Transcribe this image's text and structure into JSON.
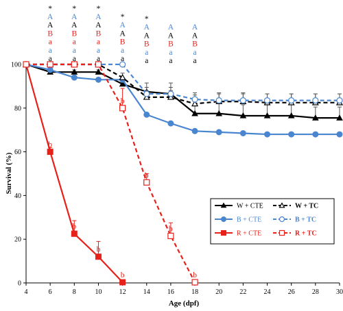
{
  "chart_data": {
    "type": "line",
    "xlabel": "Age (dpf)",
    "ylabel": "Survival (%)",
    "xlim": [
      4,
      30
    ],
    "ylim": [
      0,
      100
    ],
    "x_ticks": [
      4,
      6,
      8,
      10,
      12,
      14,
      16,
      18,
      20,
      22,
      24,
      26,
      28,
      30
    ],
    "y_ticks": [
      0,
      20,
      40,
      60,
      80,
      100
    ],
    "grid": false,
    "legend_position": "right-center",
    "series": [
      {
        "name": "W + CTE",
        "color": "#000000",
        "dashed": false,
        "marker": "filled-triangle",
        "x": [
          4,
          6,
          8,
          10,
          12,
          14,
          16,
          18,
          20,
          22,
          24,
          26,
          28,
          30
        ],
        "y": [
          100,
          96.5,
          96.5,
          96.5,
          91,
          87.5,
          86.5,
          77.5,
          77.5,
          76.5,
          76.5,
          76.5,
          75.5,
          75.5
        ],
        "err": [
          0,
          1,
          1,
          1,
          3,
          4,
          5,
          6,
          5,
          5,
          5,
          5,
          5,
          5
        ]
      },
      {
        "name": "B + CTE",
        "color": "#4a86d0",
        "dashed": false,
        "marker": "filled-circle",
        "x": [
          4,
          6,
          8,
          10,
          12,
          14,
          16,
          18,
          20,
          22,
          24,
          26,
          28,
          30
        ],
        "y": [
          100,
          97.5,
          94,
          93,
          93,
          77,
          73,
          69.5,
          69,
          68.5,
          68,
          68,
          68,
          68
        ],
        "err": [
          0,
          0,
          0,
          0,
          0,
          0,
          0,
          0,
          0,
          0,
          0,
          0,
          0,
          0
        ]
      },
      {
        "name": "R + CTE",
        "color": "#e8201a",
        "dashed": false,
        "marker": "filled-square",
        "x": [
          4,
          6,
          8,
          10,
          12
        ],
        "y": [
          100,
          60,
          22.5,
          12,
          0.3
        ],
        "err": [
          0,
          2,
          6,
          7,
          0
        ]
      },
      {
        "name": "W + TC",
        "color": "#000000",
        "dashed": true,
        "marker": "open-triangle",
        "x": [
          4,
          6,
          8,
          10,
          12,
          14,
          16,
          18,
          20,
          22,
          24,
          26,
          28,
          30
        ],
        "y": [
          100,
          100,
          100,
          100,
          94,
          85,
          85,
          82,
          83,
          83,
          82.5,
          82.5,
          82.5,
          82.5
        ],
        "err": [
          0,
          0,
          0,
          0,
          2,
          3,
          3,
          4,
          4,
          4,
          4,
          4,
          4,
          4
        ]
      },
      {
        "name": "B + TC",
        "color": "#4a86d0",
        "dashed": true,
        "marker": "open-circle",
        "x": [
          4,
          6,
          8,
          10,
          12,
          14,
          16,
          18,
          20,
          22,
          24,
          26,
          28,
          30
        ],
        "y": [
          100,
          100,
          100,
          100,
          100,
          86.5,
          86.5,
          84,
          83.5,
          83.5,
          83.5,
          83.5,
          83.5,
          83.5
        ],
        "err": [
          0,
          0,
          0,
          0,
          0,
          3,
          3,
          3,
          3,
          3,
          3,
          3,
          3,
          3
        ]
      },
      {
        "name": "R + TC",
        "color": "#e8201a",
        "dashed": true,
        "marker": "open-square",
        "x": [
          4,
          6,
          8,
          10,
          12,
          14,
          16,
          18
        ],
        "y": [
          100,
          100,
          100,
          100,
          80,
          46,
          21.5,
          0.3
        ],
        "err": [
          0,
          0,
          0,
          0,
          9,
          4,
          6,
          0
        ]
      }
    ],
    "point_labels": [
      {
        "x": 6,
        "y": 60,
        "text": "b",
        "color": "#e8201a"
      },
      {
        "x": 8,
        "y": 22.5,
        "text": "b",
        "color": "#e8201a"
      },
      {
        "x": 10,
        "y": 12,
        "text": "b",
        "color": "#e8201a"
      },
      {
        "x": 12,
        "y": 0.3,
        "text": "b",
        "color": "#e8201a"
      },
      {
        "x": 12,
        "y": 80,
        "text": "b",
        "color": "#e8201a"
      },
      {
        "x": 14,
        "y": 46,
        "text": "b",
        "color": "#e8201a"
      },
      {
        "x": 16,
        "y": 21.5,
        "text": "b",
        "color": "#e8201a"
      },
      {
        "x": 18,
        "y": 0.3,
        "text": "b",
        "color": "#e8201a"
      }
    ],
    "significance_stacks": [
      {
        "x": 6,
        "labels": [
          [
            "*",
            "#000000"
          ],
          [
            "A",
            "#4a86d0"
          ],
          [
            "A",
            "#000000"
          ],
          [
            "B",
            "#e8201a"
          ],
          [
            "a",
            "#e8201a"
          ],
          [
            "a",
            "#4a86d0"
          ],
          [
            "a",
            "#000000"
          ]
        ]
      },
      {
        "x": 8,
        "labels": [
          [
            "*",
            "#000000"
          ],
          [
            "A",
            "#4a86d0"
          ],
          [
            "A",
            "#000000"
          ],
          [
            "B",
            "#e8201a"
          ],
          [
            "a",
            "#e8201a"
          ],
          [
            "a",
            "#4a86d0"
          ],
          [
            "a",
            "#000000"
          ]
        ]
      },
      {
        "x": 10,
        "labels": [
          [
            "*",
            "#000000"
          ],
          [
            "A",
            "#4a86d0"
          ],
          [
            "A",
            "#000000"
          ],
          [
            "B",
            "#e8201a"
          ],
          [
            "a",
            "#e8201a"
          ],
          [
            "a",
            "#4a86d0"
          ],
          [
            "a",
            "#000000"
          ]
        ]
      },
      {
        "x": 12,
        "labels": [
          [
            "*",
            "#000000"
          ],
          [
            "A",
            "#4a86d0"
          ],
          [
            "A",
            "#000000"
          ],
          [
            "B",
            "#e8201a"
          ],
          [
            "a",
            "#4a86d0"
          ],
          [
            "a",
            "#000000"
          ]
        ]
      },
      {
        "x": 14,
        "labels": [
          [
            "*",
            "#000000"
          ],
          [
            "A",
            "#4a86d0"
          ],
          [
            "A",
            "#000000"
          ],
          [
            "B",
            "#e8201a"
          ],
          [
            "a",
            "#4a86d0"
          ],
          [
            "a",
            "#000000"
          ]
        ]
      },
      {
        "x": 16,
        "labels": [
          [
            "A",
            "#4a86d0"
          ],
          [
            "A",
            "#000000"
          ],
          [
            "B",
            "#e8201a"
          ],
          [
            "a",
            "#4a86d0"
          ],
          [
            "a",
            "#000000"
          ]
        ]
      },
      {
        "x": 18,
        "labels": [
          [
            "A",
            "#4a86d0"
          ],
          [
            "A",
            "#000000"
          ],
          [
            "B",
            "#e8201a"
          ],
          [
            "a",
            "#4a86d0"
          ],
          [
            "a",
            "#000000"
          ]
        ]
      }
    ],
    "legend": [
      {
        "label": "W + CTE",
        "series": 0
      },
      {
        "label": "W + TC",
        "series": 3
      },
      {
        "label": "B + CTE",
        "series": 1
      },
      {
        "label": "B + TC",
        "series": 4
      },
      {
        "label": "R + CTE",
        "series": 2
      },
      {
        "label": "R + TC",
        "series": 5
      }
    ]
  }
}
